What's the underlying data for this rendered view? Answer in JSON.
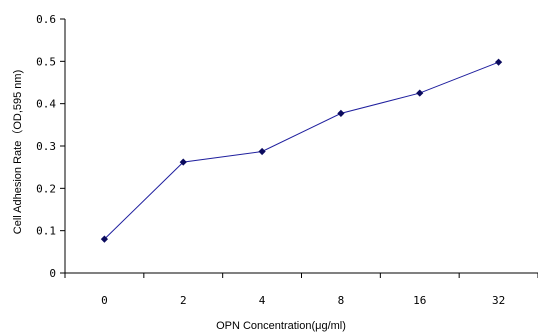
{
  "chart_data": {
    "type": "line",
    "title": "",
    "xlabel": "OPN Concentration(μg/ml)",
    "ylabel": "Cell Adhesion Rate（OD,595 nm)",
    "categories": [
      "0",
      "2",
      "4",
      "8",
      "16",
      "32"
    ],
    "series": [
      {
        "values": [
          0.08,
          0.262,
          0.287,
          0.377,
          0.425,
          0.498
        ]
      }
    ],
    "ylim": [
      0,
      0.6
    ],
    "yticks": [
      "0",
      "0.1",
      "0.2",
      "0.3",
      "0.4",
      "0.5",
      "0.6"
    ],
    "grid": false,
    "legend": "none",
    "colors": {
      "line": "#1f1f9e",
      "marker": "#0b0b5e",
      "axis": "#000000"
    }
  }
}
